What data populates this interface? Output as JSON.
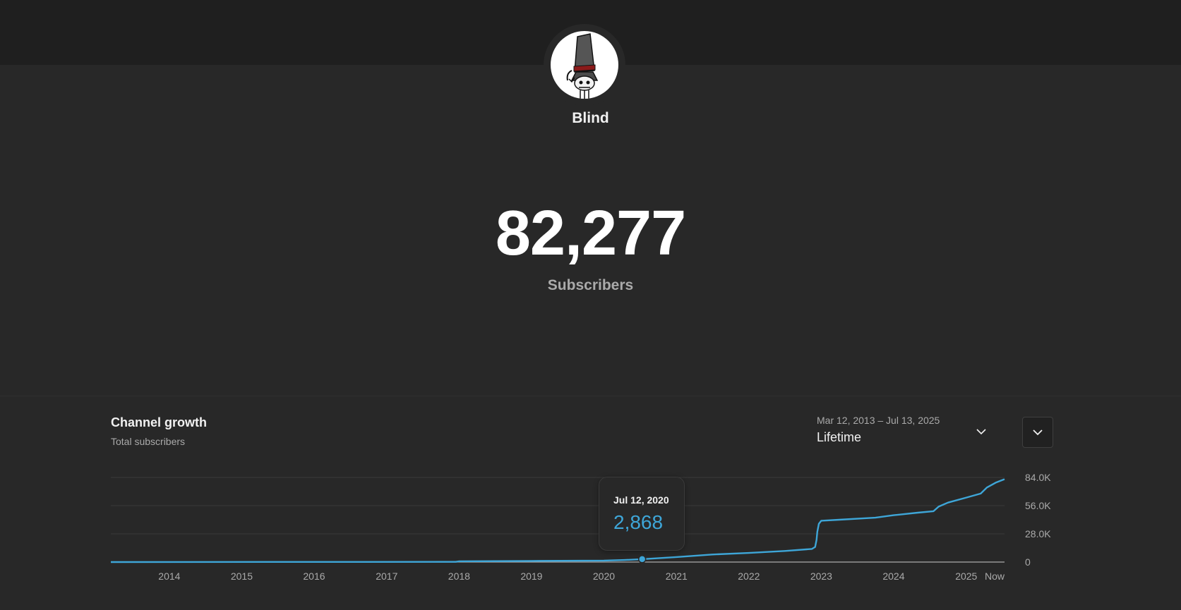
{
  "channel": {
    "name": "Blind",
    "subscriber_count": "82,277",
    "subscriber_label": "Subscribers"
  },
  "growth": {
    "title": "Channel growth",
    "subtitle": "Total subscribers",
    "range_dates": "Mar 12, 2013 – Jul 13, 2025",
    "range_value": "Lifetime"
  },
  "tooltip": {
    "date": "Jul 12, 2020",
    "value": "2,868"
  },
  "colors": {
    "line": "#3ea6d8",
    "background": "#282828",
    "topbar": "#1f1f1f",
    "grid": "#3a3a3a",
    "baseline": "#aaaaaa"
  },
  "icons": {
    "range": "chevron-down-icon",
    "menu": "chevron-down-icon"
  },
  "chart_data": {
    "type": "line",
    "title": "Channel growth",
    "subtitle": "Total subscribers",
    "x_start": "2013-03-12",
    "x_end": "2025-07-13",
    "ylim": [
      0,
      84000
    ],
    "y_ticks": [
      {
        "value": 0,
        "label": "0"
      },
      {
        "value": 28000,
        "label": "28.0K"
      },
      {
        "value": 56000,
        "label": "56.0K"
      },
      {
        "value": 84000,
        "label": "84.0K"
      }
    ],
    "x_ticks": [
      {
        "date": "2014-01-01",
        "label": "2014"
      },
      {
        "date": "2015-01-01",
        "label": "2015"
      },
      {
        "date": "2016-01-01",
        "label": "2016"
      },
      {
        "date": "2017-01-01",
        "label": "2017"
      },
      {
        "date": "2018-01-01",
        "label": "2018"
      },
      {
        "date": "2019-01-01",
        "label": "2019"
      },
      {
        "date": "2020-01-01",
        "label": "2020"
      },
      {
        "date": "2021-01-01",
        "label": "2021"
      },
      {
        "date": "2022-01-01",
        "label": "2022"
      },
      {
        "date": "2023-01-01",
        "label": "2023"
      },
      {
        "date": "2024-01-01",
        "label": "2024"
      },
      {
        "date": "2025-01-01",
        "label": "2025"
      },
      {
        "date": "2025-07-13",
        "label": "Now"
      }
    ],
    "grid": true,
    "series": [
      {
        "points": [
          {
            "date": "2013-03-12",
            "value": 0
          },
          {
            "date": "2017-12-15",
            "value": 200
          },
          {
            "date": "2018-01-01",
            "value": 800
          },
          {
            "date": "2019-01-01",
            "value": 1100
          },
          {
            "date": "2020-01-01",
            "value": 1500
          },
          {
            "date": "2020-04-15",
            "value": 2000
          },
          {
            "date": "2020-07-12",
            "value": 2868
          },
          {
            "date": "2021-01-01",
            "value": 5000
          },
          {
            "date": "2021-07-01",
            "value": 7500
          },
          {
            "date": "2022-01-01",
            "value": 9000
          },
          {
            "date": "2022-07-01",
            "value": 11000
          },
          {
            "date": "2022-11-15",
            "value": 13000
          },
          {
            "date": "2022-12-01",
            "value": 15000
          },
          {
            "date": "2022-12-08",
            "value": 22000
          },
          {
            "date": "2022-12-12",
            "value": 30000
          },
          {
            "date": "2022-12-20",
            "value": 38000
          },
          {
            "date": "2023-01-01",
            "value": 41000
          },
          {
            "date": "2023-04-01",
            "value": 42000
          },
          {
            "date": "2023-10-01",
            "value": 44000
          },
          {
            "date": "2024-01-01",
            "value": 46500
          },
          {
            "date": "2024-05-01",
            "value": 49000
          },
          {
            "date": "2024-07-20",
            "value": 50500
          },
          {
            "date": "2024-08-15",
            "value": 55000
          },
          {
            "date": "2024-10-01",
            "value": 59000
          },
          {
            "date": "2025-01-01",
            "value": 64000
          },
          {
            "date": "2025-03-15",
            "value": 68000
          },
          {
            "date": "2025-04-15",
            "value": 74000
          },
          {
            "date": "2025-06-01",
            "value": 79000
          },
          {
            "date": "2025-07-13",
            "value": 82277
          }
        ]
      }
    ],
    "highlight": {
      "date": "2020-07-12",
      "value": 2868
    }
  }
}
